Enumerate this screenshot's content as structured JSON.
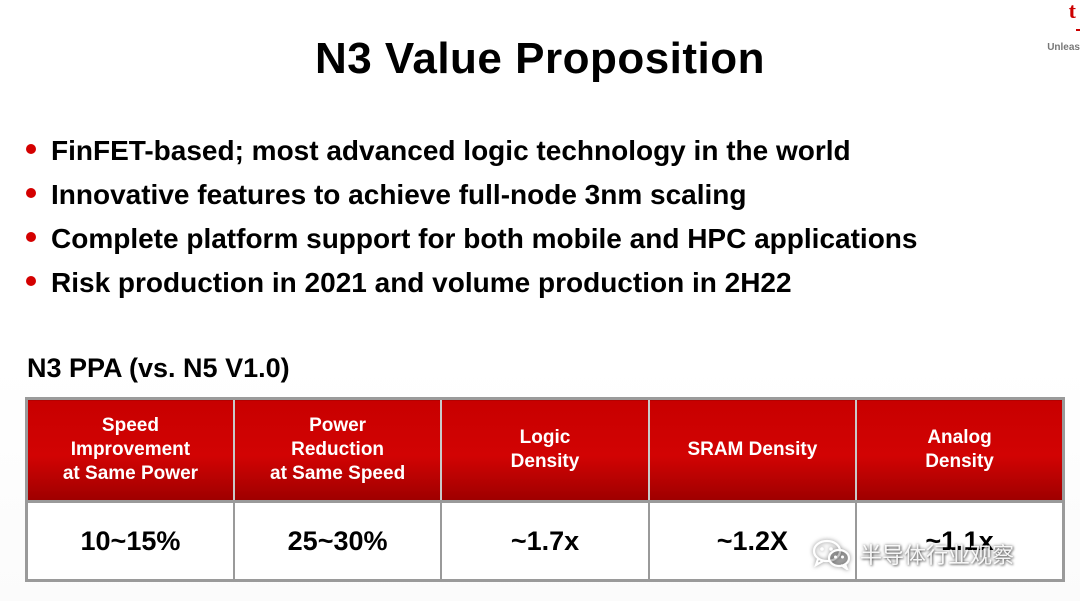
{
  "logo": {
    "mark": "t",
    "tagline": "Unleas"
  },
  "slide": {
    "title": "N3 Value Proposition"
  },
  "bullets": [
    "FinFET-based; most advanced logic technology in the world",
    "Innovative features to achieve full-node 3nm scaling",
    "Complete platform support for both mobile and HPC applications",
    "Risk production in 2021 and volume production in 2H22"
  ],
  "ppa": {
    "heading": "N3 PPA (vs. N5 V1.0)",
    "columns": [
      {
        "header_lines": [
          "Speed",
          "Improvement",
          "at Same Power"
        ],
        "value": "10~15%"
      },
      {
        "header_lines": [
          "Power",
          "Reduction",
          "at Same Speed"
        ],
        "value": "25~30%"
      },
      {
        "header_lines": [
          "Logic",
          "Density"
        ],
        "value": "~1.7x"
      },
      {
        "header_lines": [
          "SRAM Density"
        ],
        "value": "~1.2X"
      },
      {
        "header_lines": [
          "Analog",
          "Density"
        ],
        "value": "~1.1x"
      }
    ]
  },
  "watermark": {
    "text": "半导体行业观察",
    "icon": "wechat-icon"
  },
  "colors": {
    "accent_red": "#d40000",
    "header_dark_red": "#9e0000",
    "border_gray": "#9a9a9a"
  }
}
